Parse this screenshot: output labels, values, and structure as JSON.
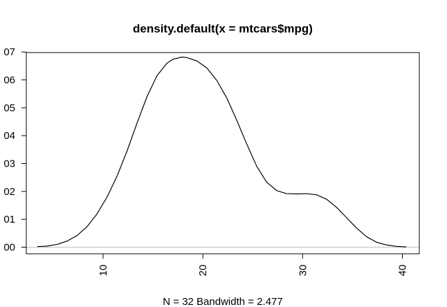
{
  "chart_data": {
    "type": "line",
    "title": "density.default(x = mtcars$mpg)",
    "xlabel": "N = 32   Bandwidth = 2.477",
    "ylabel": "",
    "xlim": [
      2.3,
      41.7
    ],
    "ylim": [
      0.0,
      0.07
    ],
    "x_ticks": [
      10,
      20,
      30,
      40
    ],
    "x_tick_labels": [
      "10",
      "20",
      "30",
      "40"
    ],
    "y_ticks": [
      0.0,
      0.01,
      0.02,
      0.03,
      0.04,
      0.05,
      0.06,
      0.07
    ],
    "y_tick_labels": [
      "00",
      "01",
      "02",
      "03",
      "04",
      "05",
      "06",
      "07"
    ],
    "grid": false,
    "baseline": 0.0,
    "series": [
      {
        "color": "#000000",
        "x": [
          3.4,
          4.4,
          5.4,
          6.4,
          7.4,
          8.4,
          9.4,
          10.4,
          11.4,
          12.4,
          13.4,
          14.4,
          15.4,
          16.4,
          17.0,
          17.9,
          18.4,
          19.4,
          20.4,
          21.4,
          22.4,
          23.4,
          24.4,
          25.4,
          26.4,
          27.4,
          28.4,
          29.4,
          30.4,
          31.4,
          32.4,
          33.4,
          34.4,
          35.4,
          36.4,
          37.4,
          38.4,
          39.4,
          40.4
        ],
        "y": [
          0.0002,
          0.0004,
          0.001,
          0.0022,
          0.0042,
          0.0074,
          0.012,
          0.018,
          0.0255,
          0.0345,
          0.0445,
          0.054,
          0.0615,
          0.066,
          0.0674,
          0.0682,
          0.068,
          0.0668,
          0.0643,
          0.0598,
          0.0535,
          0.0455,
          0.037,
          0.029,
          0.0233,
          0.0203,
          0.0192,
          0.0191,
          0.0192,
          0.0188,
          0.0172,
          0.0143,
          0.0106,
          0.0069,
          0.0038,
          0.0018,
          0.0008,
          0.0003,
          0.0001
        ]
      }
    ]
  }
}
